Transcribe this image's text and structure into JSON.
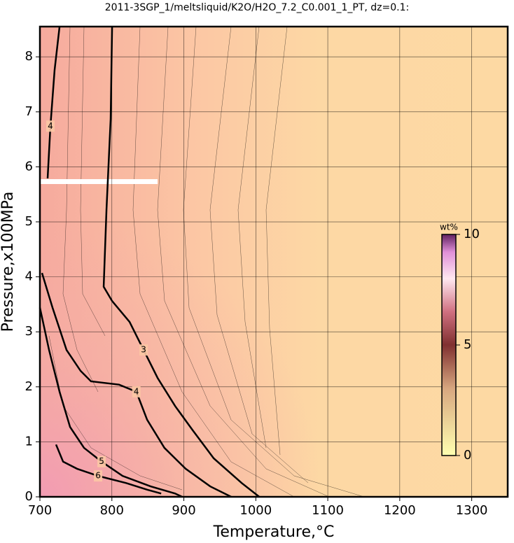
{
  "chart_data": {
    "type": "contour",
    "title": "2011-3SGP_1/meltsliquid/K2O/H2O_7.2_C0.001_1_PT, dz=0.1:",
    "x_label": "Temperature,°C",
    "y_label": "Pressure,x100MPa",
    "xlim": [
      700,
      1350
    ],
    "ylim": [
      0,
      8.55
    ],
    "xticks": [
      700,
      800,
      900,
      1000,
      1100,
      1200,
      1300
    ],
    "yticks": [
      0,
      1,
      2,
      3,
      4,
      5,
      6,
      7,
      8
    ],
    "grid": true,
    "contours": [
      {
        "level": 3,
        "x": [
          800.3,
          798.3,
          792.5,
          788.6,
          800.3,
          824.6,
          844.1,
          863.6,
          887.9,
          912.3,
          941.5,
          980.4,
          1004.8
        ],
        "y": [
          8.55,
          6.87,
          5.22,
          3.82,
          3.56,
          3.18,
          2.67,
          2.16,
          1.65,
          1.21,
          0.7,
          0.25,
          0
        ]
      },
      {
        "level": 4,
        "x": [
          727.3,
          720.4,
          714.6,
          710.7
        ],
        "y": [
          8.55,
          7.76,
          6.74,
          5.79
        ]
      },
      {
        "level": 4,
        "x": [
          702.9,
          717.5,
          737,
          756.5,
          771,
          810,
          834,
          849,
          873,
          902.5,
          936.6,
          965.8
        ],
        "y": [
          4.07,
          3.44,
          2.67,
          2.29,
          2.1,
          2.04,
          1.91,
          1.4,
          0.89,
          0.51,
          0.19,
          0
        ]
      },
      {
        "level": 5,
        "x": [
          700,
          712.7,
          727.3,
          741.9,
          761.3,
          785.7,
          814.9,
          853.8,
          887.9,
          897.7
        ],
        "y": [
          3.44,
          2.67,
          1.91,
          1.27,
          0.89,
          0.64,
          0.38,
          0.19,
          0.06,
          0
        ]
      },
      {
        "level": 6,
        "x": [
          722.4,
          732.2,
          751.6,
          780.8,
          819.8,
          849,
          868.5
        ],
        "y": [
          0.95,
          0.64,
          0.51,
          0.38,
          0.25,
          0.13,
          0.06
        ]
      }
    ],
    "colorbar": {
      "label": "wt%",
      "lim": [
        0,
        10
      ],
      "ticks": [
        0,
        5,
        10
      ]
    }
  }
}
